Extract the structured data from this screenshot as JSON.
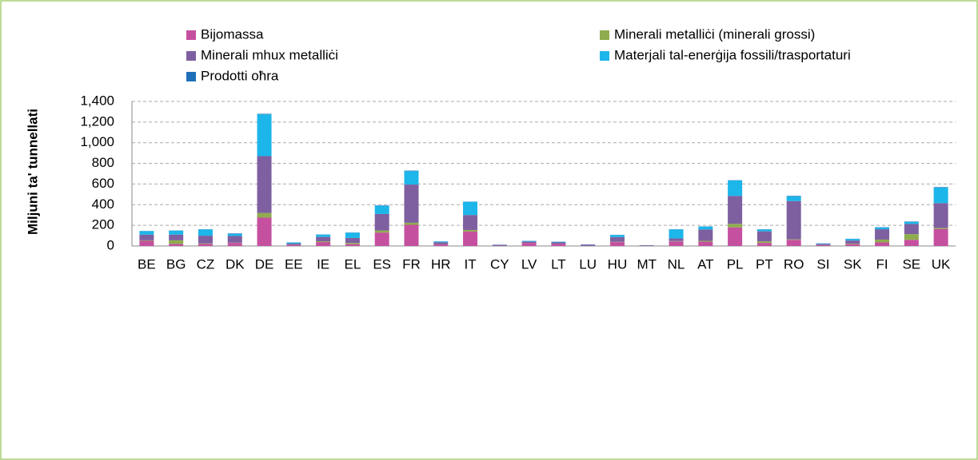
{
  "chart_data": {
    "type": "stacked_bar",
    "ylabel": "Miljuni ta' tunnellati",
    "categories": [
      "BE",
      "BG",
      "CZ",
      "DK",
      "DE",
      "EE",
      "IE",
      "EL",
      "ES",
      "FR",
      "HR",
      "IT",
      "CY",
      "LV",
      "LT",
      "LU",
      "HU",
      "MT",
      "NL",
      "AT",
      "PL",
      "PT",
      "RO",
      "SI",
      "SK",
      "FI",
      "SE",
      "UK"
    ],
    "series": [
      {
        "name": "Bijomassa",
        "color": "#c5509f",
        "values": [
          50,
          20,
          20,
          30,
          275,
          10,
          38,
          18,
          130,
          205,
          15,
          140,
          3,
          30,
          20,
          2,
          38,
          1,
          45,
          42,
          180,
          30,
          60,
          8,
          18,
          35,
          60,
          165
        ]
      },
      {
        "name": "Minerali metalliċi (minerali grossi)",
        "color": "#8fac4e",
        "values": [
          5,
          35,
          5,
          2,
          45,
          1,
          8,
          12,
          20,
          20,
          1,
          15,
          0,
          0,
          0,
          0,
          3,
          0,
          3,
          8,
          35,
          15,
          5,
          1,
          5,
          27,
          55,
          10
        ]
      },
      {
        "name": "Minerali mhux metalliċi",
        "color": "#7e5fa0",
        "values": [
          55,
          55,
          75,
          65,
          550,
          12,
          42,
          48,
          160,
          370,
          20,
          145,
          8,
          12,
          15,
          10,
          45,
          6,
          25,
          110,
          270,
          97,
          370,
          10,
          30,
          100,
          98,
          240
        ]
      },
      {
        "name": "Materjali tal-enerġija fossili/trasportaturi",
        "color": "#1cb6ea",
        "values": [
          33,
          38,
          60,
          20,
          405,
          10,
          22,
          50,
          80,
          130,
          8,
          128,
          1,
          6,
          5,
          1,
          20,
          0,
          87,
          28,
          150,
          18,
          45,
          4,
          15,
          17,
          20,
          150
        ]
      },
      {
        "name": "Prodotti oħra",
        "color": "#1f6fb8",
        "values": [
          2,
          2,
          2,
          5,
          5,
          2,
          2,
          2,
          3,
          5,
          1,
          2,
          1,
          2,
          2,
          2,
          2,
          1,
          2,
          2,
          2,
          2,
          5,
          2,
          2,
          3,
          4,
          5
        ]
      }
    ],
    "ylim": [
      0,
      1400
    ],
    "yticks": [
      0,
      200,
      400,
      600,
      800,
      {
        "value": 1000,
        "label": "1,000"
      },
      {
        "value": 1200,
        "label": "1,200"
      },
      {
        "value": 1400,
        "label": "1,400"
      }
    ],
    "grid": true,
    "legend": "top"
  }
}
